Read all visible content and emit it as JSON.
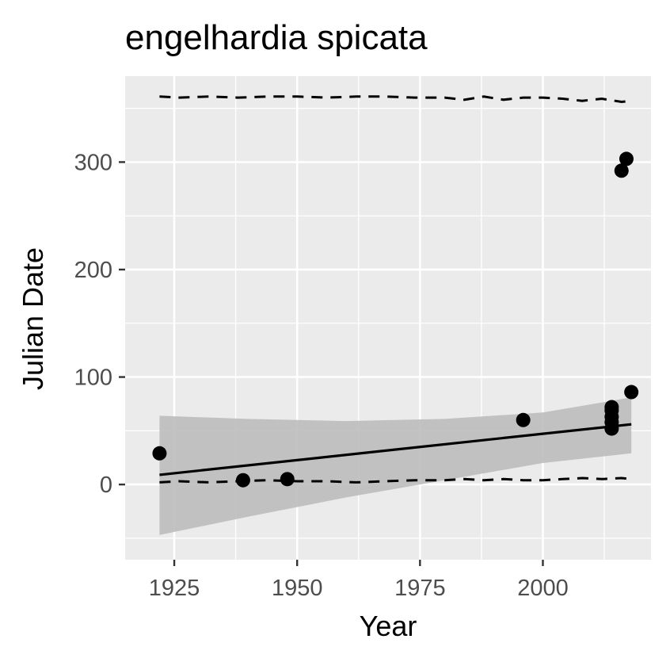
{
  "chart_data": {
    "type": "scatter",
    "title": "engelhardia spicata",
    "xlabel": "Year",
    "ylabel": "Julian Date",
    "xlim": [
      1915,
      2022
    ],
    "ylim": [
      -70,
      380
    ],
    "x_ticks": [
      1925,
      1950,
      1975,
      2000
    ],
    "y_ticks": [
      0,
      100,
      200,
      300
    ],
    "grid": true,
    "panel_background": "#ebebeb",
    "grid_color": "#ffffff",
    "points": [
      {
        "x": 1922,
        "y": 29
      },
      {
        "x": 1939,
        "y": 4
      },
      {
        "x": 1948,
        "y": 5
      },
      {
        "x": 1996,
        "y": 60
      },
      {
        "x": 2014,
        "y": 52
      },
      {
        "x": 2014,
        "y": 58
      },
      {
        "x": 2014,
        "y": 63
      },
      {
        "x": 2014,
        "y": 69
      },
      {
        "x": 2014,
        "y": 72
      },
      {
        "x": 2016,
        "y": 292
      },
      {
        "x": 2017,
        "y": 303
      },
      {
        "x": 2018,
        "y": 86
      }
    ],
    "trend_line": {
      "x": [
        1922,
        2018
      ],
      "y": [
        9,
        56
      ],
      "color": "#000000"
    },
    "confidence_band": {
      "x": [
        1922,
        1940,
        1960,
        1980,
        2000,
        2018
      ],
      "lower": [
        -47,
        -30,
        -12,
        4,
        20,
        29
      ],
      "upper": [
        64,
        61,
        59,
        61,
        67,
        81
      ],
      "color": "#bdbdbd"
    },
    "upper_dashed": {
      "x": [
        1922,
        1926,
        1932,
        1938,
        1944,
        1950,
        1956,
        1962,
        1968,
        1974,
        1980,
        1984,
        1988,
        1992,
        1996,
        2000,
        2004,
        2008,
        2012,
        2016,
        2018
      ],
      "y": [
        361,
        360,
        361,
        360,
        361,
        361,
        360,
        361,
        361,
        360,
        360,
        358,
        361,
        358,
        360,
        360,
        359,
        357,
        359,
        356,
        357
      ]
    },
    "lower_dashed": {
      "x": [
        1922,
        1926,
        1932,
        1938,
        1944,
        1950,
        1956,
        1962,
        1968,
        1974,
        1980,
        1984,
        1988,
        1992,
        1996,
        2000,
        2004,
        2008,
        2012,
        2016,
        2018
      ],
      "y": [
        2,
        3,
        2,
        3,
        4,
        3,
        3,
        2,
        3,
        4,
        4,
        5,
        4,
        5,
        4,
        4,
        5,
        6,
        5,
        6,
        5
      ]
    }
  }
}
